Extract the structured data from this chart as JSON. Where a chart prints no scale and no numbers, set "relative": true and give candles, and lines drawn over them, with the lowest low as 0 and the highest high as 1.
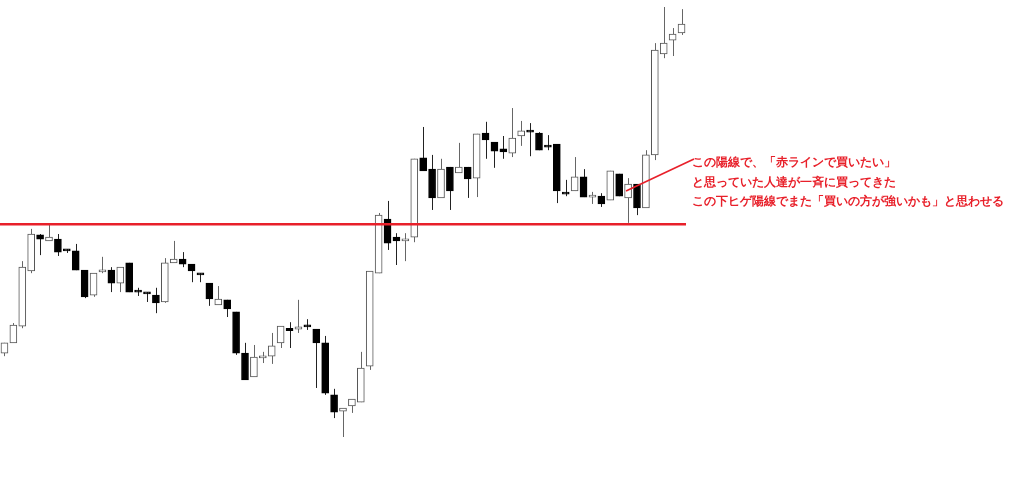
{
  "chart_data": {
    "type": "candlestick",
    "relative": true,
    "categories": [
      null,
      null,
      null,
      null,
      null,
      null,
      null,
      null,
      null,
      null,
      null,
      null,
      null,
      null,
      null,
      null,
      null,
      null,
      null,
      null,
      null,
      null,
      null,
      null,
      null,
      null,
      null,
      null,
      null,
      null,
      null,
      null,
      null,
      null,
      null,
      null,
      null,
      null,
      null,
      null,
      null,
      null,
      null,
      null,
      null,
      null,
      null,
      null,
      null,
      null,
      null,
      null,
      null,
      null,
      null,
      null,
      null,
      null,
      null,
      null,
      null,
      null,
      null,
      null,
      null,
      null,
      null,
      null,
      null,
      null,
      null,
      null,
      null,
      null,
      null,
      null,
      null
    ],
    "ohlc": [
      [
        0.195,
        0.219,
        0.188,
        0.219
      ],
      [
        0.219,
        0.265,
        0.219,
        0.26
      ],
      [
        0.258,
        0.409,
        0.253,
        0.395
      ],
      [
        0.386,
        0.484,
        0.381,
        0.472
      ],
      [
        0.47,
        0.472,
        0.423,
        0.46
      ],
      [
        0.456,
        0.493,
        0.456,
        0.465
      ],
      [
        0.46,
        0.472,
        0.421,
        0.43
      ],
      [
        0.433,
        0.437,
        0.428,
        0.433
      ],
      [
        0.433,
        0.449,
        0.388,
        0.388
      ],
      [
        0.388,
        0.388,
        0.323,
        0.326
      ],
      [
        0.33,
        0.381,
        0.326,
        0.381
      ],
      [
        0.384,
        0.419,
        0.381,
        0.386
      ],
      [
        0.388,
        0.395,
        0.337,
        0.358
      ],
      [
        0.358,
        0.395,
        0.337,
        0.395
      ],
      [
        0.405,
        0.405,
        0.337,
        0.337
      ],
      [
        0.337,
        0.347,
        0.328,
        0.337
      ],
      [
        0.337,
        0.337,
        0.314,
        0.333
      ],
      [
        0.33,
        0.347,
        0.288,
        0.312
      ],
      [
        0.314,
        0.416,
        0.312,
        0.405
      ],
      [
        0.405,
        0.456,
        0.405,
        0.414
      ],
      [
        0.414,
        0.43,
        0.395,
        0.402
      ],
      [
        0.402,
        0.402,
        0.36,
        0.386
      ],
      [
        0.381,
        0.381,
        0.36,
        0.377
      ],
      [
        0.358,
        0.358,
        0.305,
        0.321
      ],
      [
        0.307,
        0.351,
        0.307,
        0.321
      ],
      [
        0.319,
        0.319,
        0.279,
        0.298
      ],
      [
        0.291,
        0.291,
        0.191,
        0.195
      ],
      [
        0.195,
        0.219,
        0.133,
        0.133
      ],
      [
        0.14,
        0.214,
        0.14,
        0.186
      ],
      [
        0.184,
        0.198,
        0.172,
        0.186
      ],
      [
        0.188,
        0.242,
        0.17,
        0.212
      ],
      [
        0.219,
        0.258,
        0.207,
        0.258
      ],
      [
        0.253,
        0.267,
        0.207,
        0.247
      ],
      [
        0.251,
        0.319,
        0.242,
        0.256
      ],
      [
        0.26,
        0.274,
        0.249,
        0.256
      ],
      [
        0.251,
        0.251,
        0.114,
        0.219
      ],
      [
        0.219,
        0.235,
        0.098,
        0.102
      ],
      [
        0.098,
        0.112,
        0.044,
        0.058
      ],
      [
        0.06,
        0.067,
        0,
        0.067
      ],
      [
        0.072,
        0.088,
        0.056,
        0.088
      ],
      [
        0.081,
        0.198,
        0.081,
        0.16
      ],
      [
        0.165,
        0.386,
        0.156,
        0.386
      ],
      [
        0.381,
        0.521,
        0.381,
        0.516
      ],
      [
        0.507,
        0.549,
        0.435,
        0.451
      ],
      [
        0.465,
        0.474,
        0.4,
        0.456
      ],
      [
        0.456,
        0.474,
        0.409,
        0.46
      ],
      [
        0.465,
        0.647,
        0.453,
        0.647
      ],
      [
        0.649,
        0.721,
        0.619,
        0.619
      ],
      [
        0.623,
        0.656,
        0.528,
        0.556
      ],
      [
        0.556,
        0.647,
        0.556,
        0.623
      ],
      [
        0.628,
        0.628,
        0.528,
        0.572
      ],
      [
        0.614,
        0.684,
        0.614,
        0.628
      ],
      [
        0.628,
        0.628,
        0.556,
        0.6
      ],
      [
        0.602,
        0.705,
        0.558,
        0.705
      ],
      [
        0.707,
        0.733,
        0.647,
        0.691
      ],
      [
        0.686,
        0.686,
        0.626,
        0.665
      ],
      [
        0.67,
        0.7,
        0.647,
        0.663
      ],
      [
        0.66,
        0.765,
        0.651,
        0.695
      ],
      [
        0.7,
        0.735,
        0.677,
        0.712
      ],
      [
        0.712,
        0.73,
        0.653,
        0.709
      ],
      [
        0.707,
        0.709,
        0.667,
        0.667
      ],
      [
        0.674,
        0.702,
        0.667,
        0.674
      ],
      [
        0.681,
        0.681,
        0.544,
        0.572
      ],
      [
        0.565,
        0.598,
        0.56,
        0.565
      ],
      [
        0.572,
        0.651,
        0.572,
        0.605
      ],
      [
        0.605,
        0.623,
        0.558,
        0.558
      ],
      [
        0.558,
        0.57,
        0.542,
        0.56
      ],
      [
        0.56,
        0.567,
        0.535,
        0.542
      ],
      [
        0.551,
        0.619,
        0.551,
        0.619
      ],
      [
        0.612,
        0.612,
        0.56,
        0.56
      ],
      [
        0.556,
        0.602,
        0.498,
        0.588
      ],
      [
        0.588,
        0.588,
        0.516,
        0.533
      ],
      [
        0.533,
        0.667,
        0.533,
        0.656
      ],
      [
        0.656,
        0.916,
        0.644,
        0.9
      ],
      [
        0.891,
        1,
        0.881,
        0.916
      ],
      [
        0.923,
        0.951,
        0.886,
        0.937
      ],
      [
        0.94,
        0.995,
        0.935,
        0.96
      ]
    ],
    "ref_lines": [
      {
        "axis": "y",
        "value": 0.495,
        "color": "#e8202a"
      }
    ],
    "annotations": [
      "この陽線で、「赤ラインで買いたい」",
      "と思っていた人達が一斉に買ってきた",
      "この下ヒゲ陽線でまた「買いの方が強いかも」と思わせる"
    ]
  }
}
